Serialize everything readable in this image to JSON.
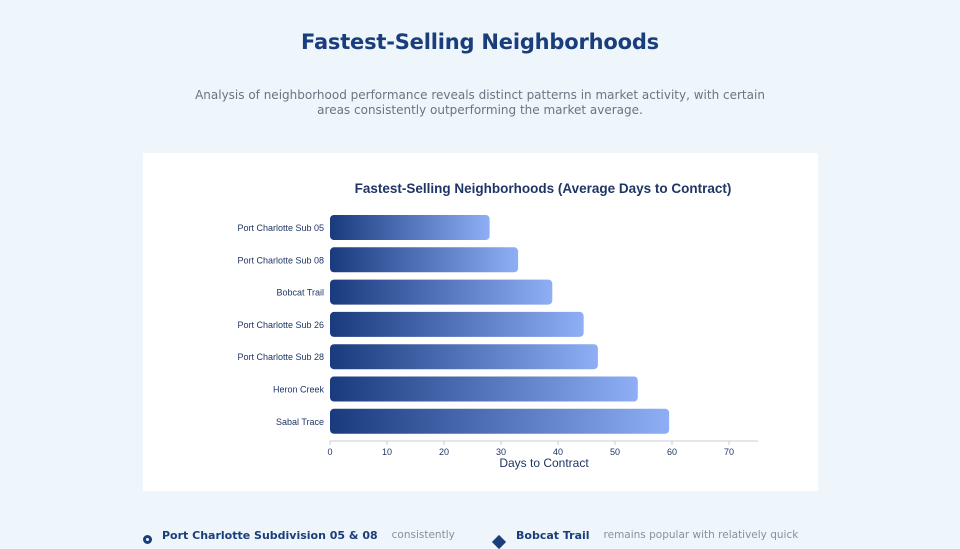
{
  "page": {
    "title": "Fastest-Selling Neighborhoods",
    "subtitle": "Analysis of neighborhood performance reveals distinct patterns in market activity, with certain areas consistently outperforming the market average."
  },
  "colors": {
    "title": "#1a3d7c",
    "bar_start": "#1a3a7e",
    "bar_end": "#8eaef5",
    "background": "#eef6fb"
  },
  "chart_data": {
    "type": "bar",
    "orientation": "horizontal",
    "title": "Fastest-Selling Neighborhoods (Average Days to Contract)",
    "xlabel": "Days to Contract",
    "ylabel": "",
    "categories": [
      "Port Charlotte Sub 05",
      "Port Charlotte Sub 08",
      "Bobcat Trail",
      "Port Charlotte Sub 26",
      "Port Charlotte Sub 28",
      "Heron Creek",
      "Sabal Trace"
    ],
    "values": [
      28,
      33,
      39,
      44.5,
      47,
      54,
      59.5
    ],
    "xlim": [
      0,
      75
    ],
    "xticks": [
      0,
      10,
      20,
      30,
      40,
      50,
      60,
      70
    ],
    "grid": false,
    "legend": "none"
  },
  "notes": [
    {
      "icon": "location-pin-icon",
      "bold": "Port Charlotte Subdivision 05 & 08",
      "text": "consistently"
    },
    {
      "icon": "diamond-icon",
      "bold": "Bobcat Trail",
      "text": "remains popular with relatively quick"
    }
  ]
}
